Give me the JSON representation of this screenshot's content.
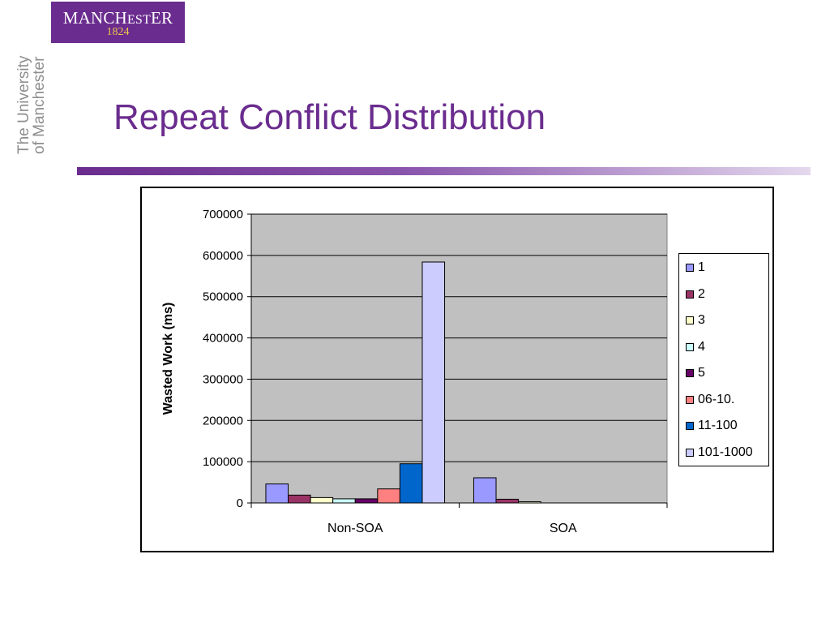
{
  "logo": {
    "word_start": "MANCH",
    "word_sc": "EST",
    "word_end": "ER",
    "year": "1824"
  },
  "side_text": {
    "line1": "The University",
    "line2": "of Manchester"
  },
  "slide": {
    "title": "Repeat Conflict Distribution"
  },
  "chart_data": {
    "type": "bar",
    "title": "",
    "xlabel": "",
    "ylabel": "Wasted Work (ms)",
    "ylim": [
      0,
      700000
    ],
    "yticks": [
      "700000",
      "600000",
      "500000",
      "400000",
      "300000",
      "200000",
      "100000",
      "0"
    ],
    "grid": true,
    "legend_position": "right",
    "categories": [
      "Non-SOA",
      "SOA"
    ],
    "series": [
      {
        "name": "1",
        "color": "#9999ff",
        "values": [
          46000,
          61000
        ]
      },
      {
        "name": "2",
        "color": "#993366",
        "values": [
          19000,
          9000
        ]
      },
      {
        "name": "3",
        "color": "#ffffcc",
        "values": [
          13000,
          3000
        ]
      },
      {
        "name": "4",
        "color": "#ccffff",
        "values": [
          10000,
          0
        ]
      },
      {
        "name": "5",
        "color": "#660066",
        "values": [
          10000,
          0
        ]
      },
      {
        "name": "06-10.",
        "color": "#ff8080",
        "values": [
          34000,
          0
        ]
      },
      {
        "name": "11-100",
        "color": "#0066cc",
        "values": [
          95000,
          0
        ]
      },
      {
        "name": "101-1000",
        "color": "#ccccff",
        "values": [
          584000,
          0
        ]
      }
    ]
  }
}
